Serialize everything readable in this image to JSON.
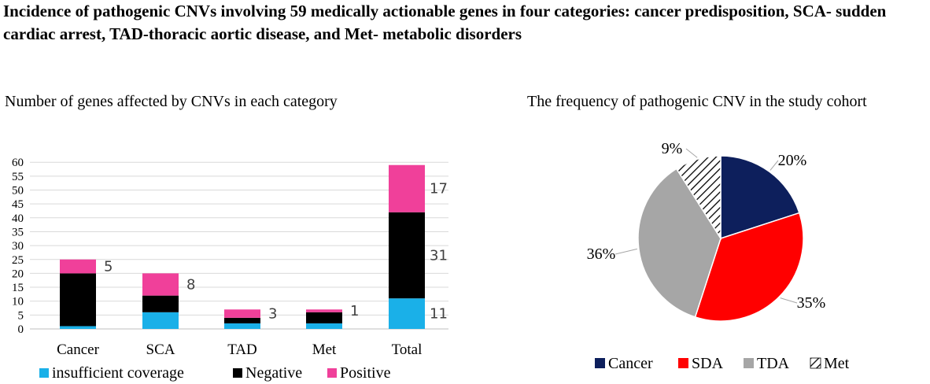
{
  "title": "Incidence of pathogenic CNVs involving 59 medically actionable genes in four categories: cancer predisposition, SCA- sudden cardiac arrest, TAD-thoracic aortic disease, and Met- metabolic disorders",
  "chart_data": [
    {
      "type": "bar",
      "stacked": true,
      "title": "Number of genes affected by CNVs in each category",
      "categories": [
        "Cancer",
        "SCA",
        "TAD",
        "Met",
        "Total"
      ],
      "series": [
        {
          "name": "insufficient coverage",
          "color": "#1AB0E8",
          "values": [
            1,
            6,
            2,
            2,
            11
          ]
        },
        {
          "name": "Negative",
          "color": "#000000",
          "values": [
            19,
            6,
            2,
            4,
            31
          ]
        },
        {
          "name": "Positive",
          "color": "#F0409A",
          "values": [
            5,
            8,
            3,
            1,
            17
          ]
        }
      ],
      "data_labels": [
        {
          "category": "Cancer",
          "text": "5"
        },
        {
          "category": "SCA",
          "text": "8"
        },
        {
          "category": "TAD",
          "text": "3"
        },
        {
          "category": "Met",
          "text": "1"
        },
        {
          "category": "Total",
          "texts": [
            "17",
            "31",
            "11"
          ]
        }
      ],
      "yticks": [
        0,
        5,
        10,
        15,
        20,
        25,
        30,
        35,
        40,
        45,
        50,
        55,
        60
      ],
      "ylim": [
        0,
        60
      ],
      "grid": true,
      "legend_position": "bottom"
    },
    {
      "type": "pie",
      "title": "The frequency of pathogenic CNV in the study cohort",
      "slices": [
        {
          "label": "Cancer",
          "value": 20,
          "text": "20%",
          "color": "#0D1F5C"
        },
        {
          "label": "SDA",
          "value": 35,
          "text": "35%",
          "color": "#FF0000"
        },
        {
          "label": "TDA",
          "value": 36,
          "text": "36%",
          "color": "#A6A6A6"
        },
        {
          "label": "Met",
          "value": 9,
          "text": "9%",
          "color": "hatched"
        }
      ],
      "legend_position": "bottom"
    }
  ]
}
